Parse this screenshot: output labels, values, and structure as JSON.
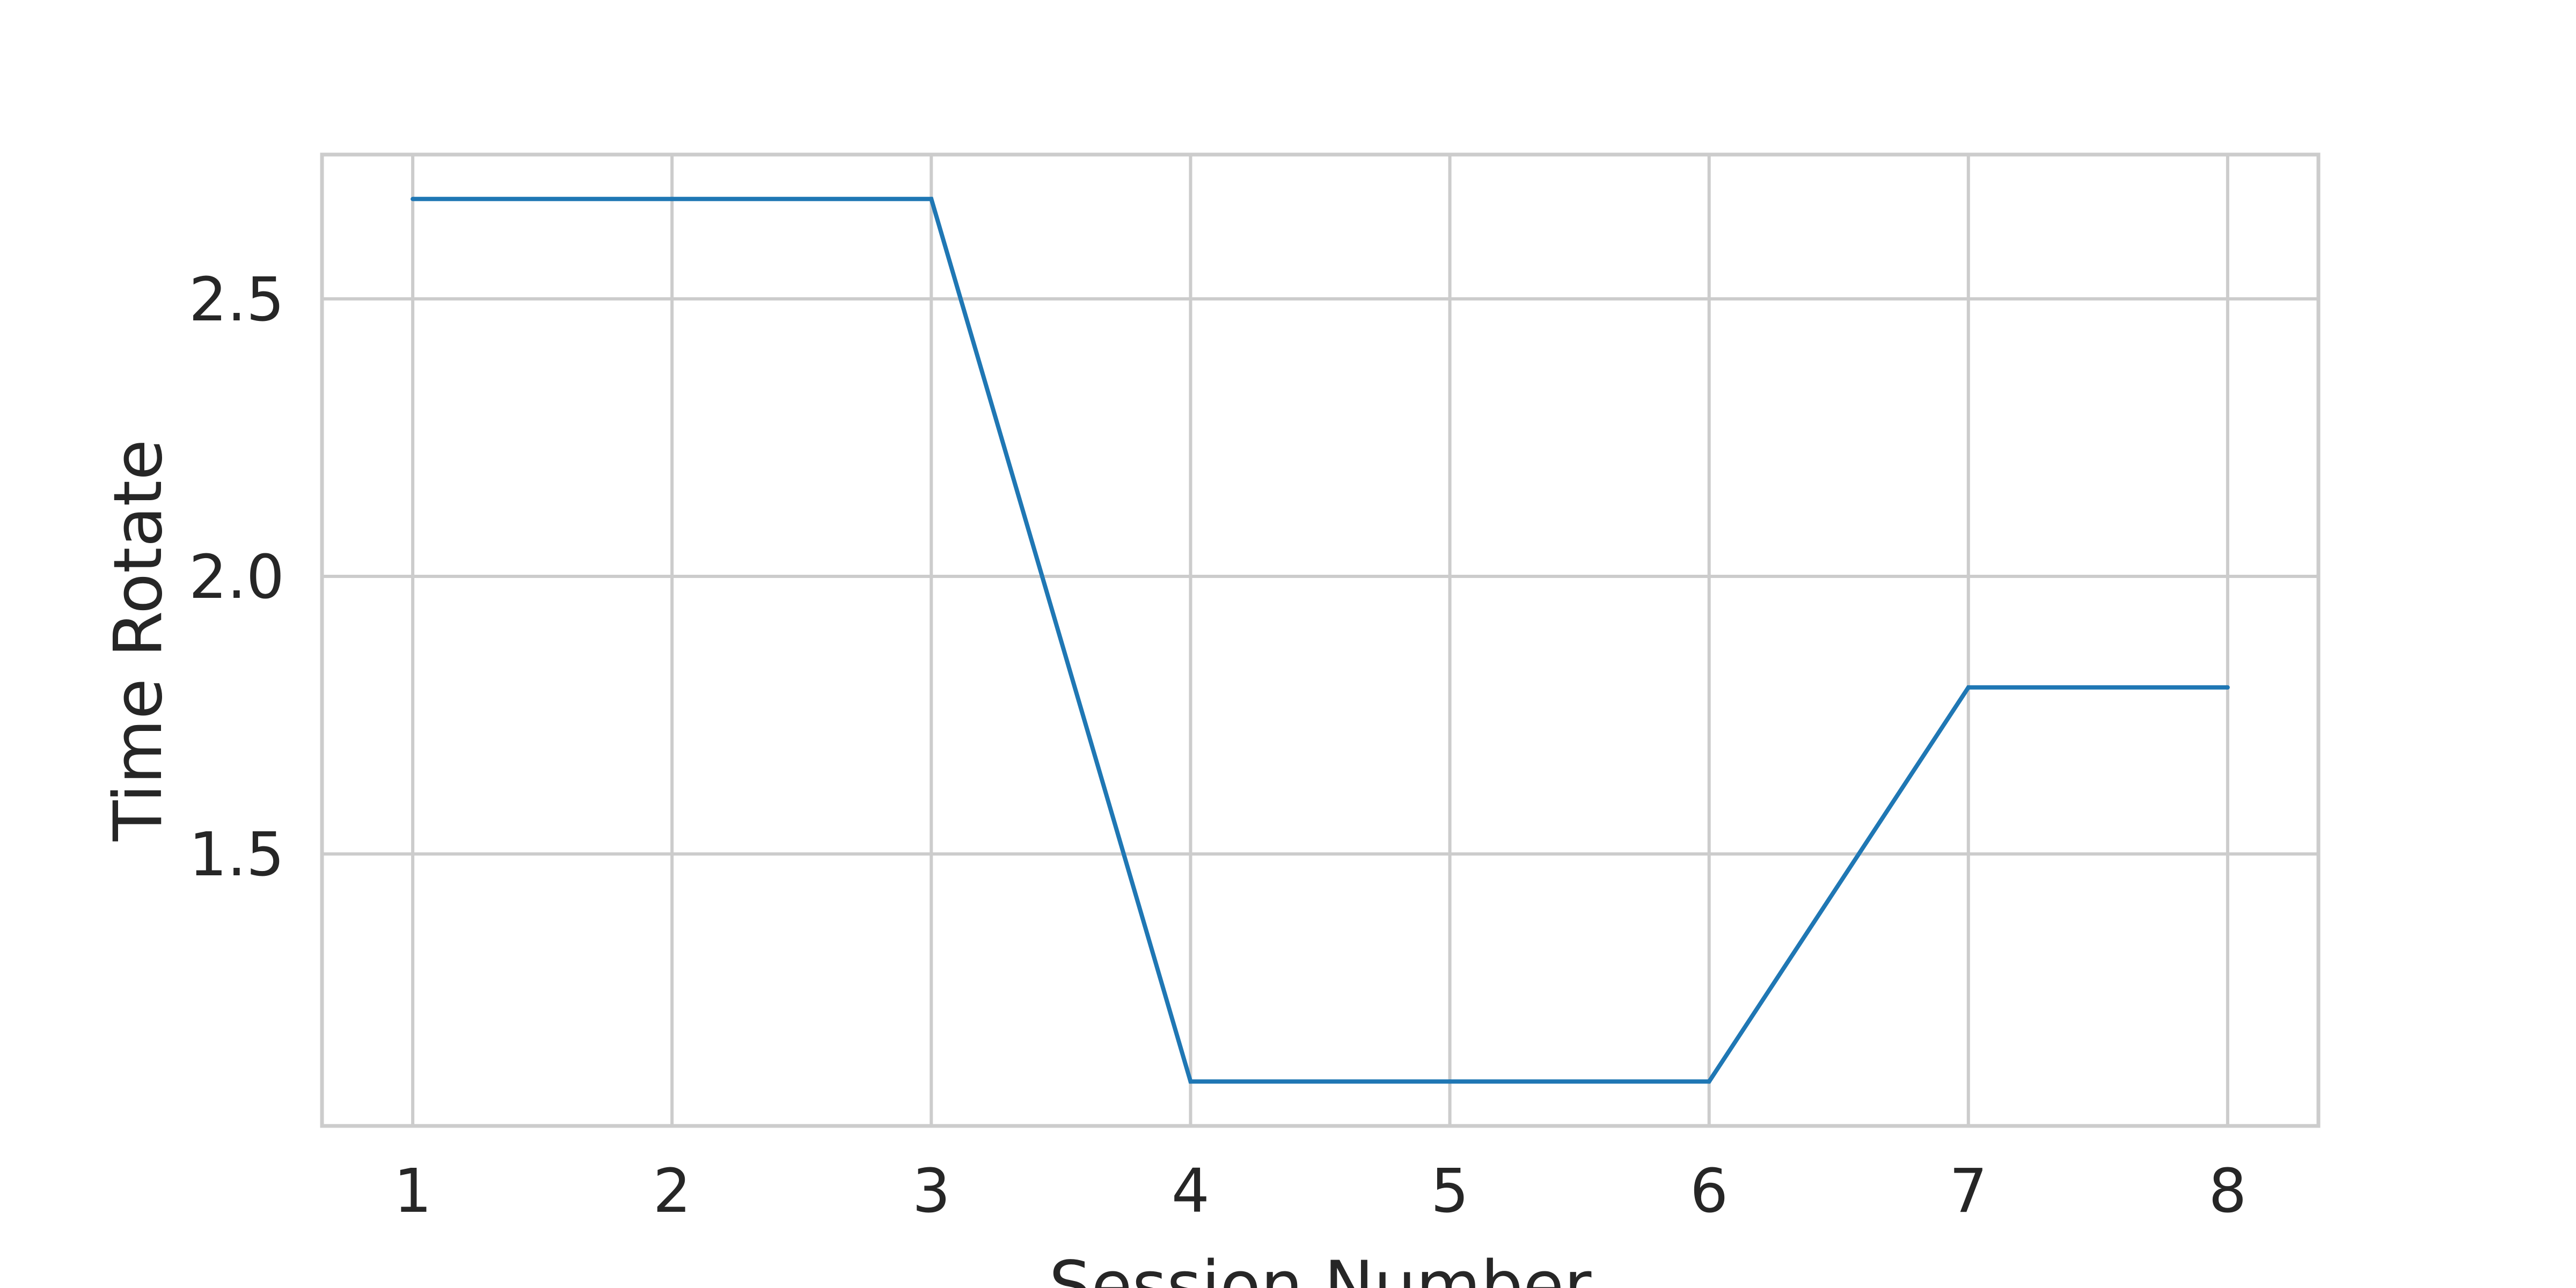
{
  "chart_data": {
    "type": "line",
    "title": "",
    "xlabel": "Session Number",
    "ylabel": "Time Rotate",
    "x": [
      1,
      2,
      3,
      4,
      5,
      6,
      7,
      8
    ],
    "series": [
      {
        "values": [
          2.68,
          2.68,
          2.68,
          1.09,
          1.09,
          1.09,
          1.8,
          1.8
        ],
        "color": "#1f77b4"
      }
    ],
    "xlim": [
      0.65,
      8.35
    ],
    "ylim": [
      1.01,
      2.76
    ],
    "xticks": [
      1,
      2,
      3,
      4,
      5,
      6,
      7,
      8
    ],
    "xtick_labels": [
      "1",
      "2",
      "3",
      "4",
      "5",
      "6",
      "7",
      "8"
    ],
    "yticks": [
      1.5,
      2.0,
      2.5
    ],
    "ytick_labels": [
      "1.5",
      "2.0",
      "2.5"
    ],
    "grid": true,
    "legend": "none",
    "colors": {
      "grid": "#cccccc",
      "text": "#262626",
      "background": "#ffffff"
    }
  }
}
